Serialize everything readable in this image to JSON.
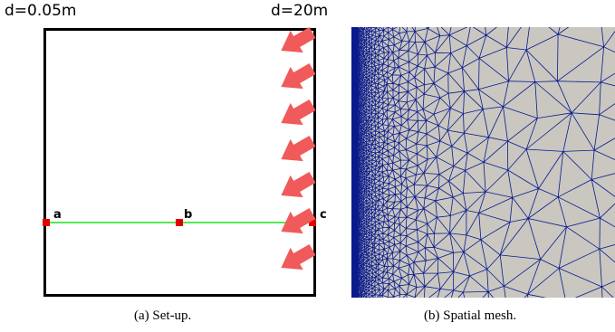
{
  "setup": {
    "left_label": "d=0.05m",
    "right_label": "d=20m",
    "points": [
      {
        "id": "a",
        "label": "a"
      },
      {
        "id": "b",
        "label": "b"
      },
      {
        "id": "c",
        "label": "c"
      }
    ],
    "caption": "(a) Set-up.",
    "colors": {
      "boundary": "#000000",
      "line": "#22dd22",
      "point": "#e00000",
      "arrow": "#f05a5a"
    }
  },
  "mesh": {
    "caption": "(b) Spatial mesh.",
    "colors": {
      "background": "#c9c7c0",
      "edges": "#0a1a8c"
    }
  }
}
